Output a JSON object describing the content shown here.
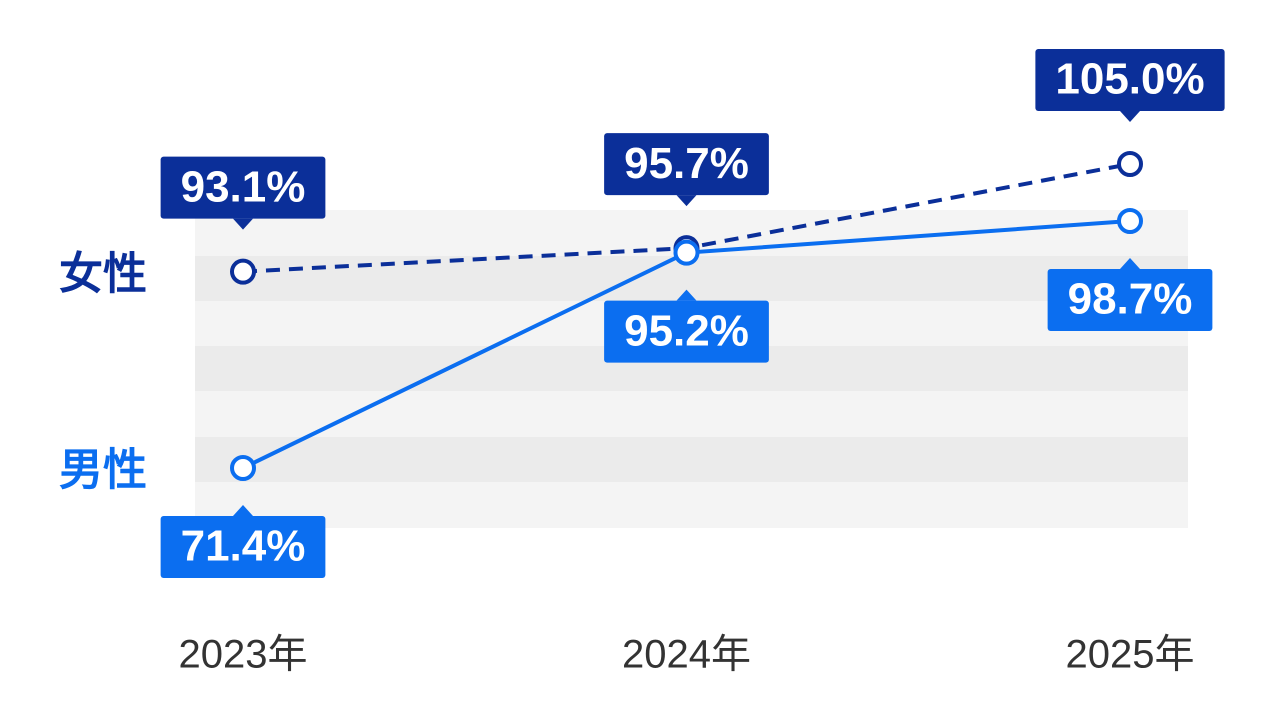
{
  "chart_data": {
    "type": "line",
    "categories": [
      "2023年",
      "2024年",
      "2025年"
    ],
    "series": [
      {
        "name": "女性",
        "color": "#0b2f99",
        "dashed": true,
        "values": [
          93.1,
          95.7,
          105.0
        ],
        "value_labels": [
          "93.1%",
          "95.7%",
          "105.0%"
        ]
      },
      {
        "name": "男性",
        "color": "#0b6ef0",
        "dashed": false,
        "values": [
          71.4,
          95.2,
          98.7
        ],
        "value_labels": [
          "71.4%",
          "95.2%",
          "98.7%"
        ]
      }
    ]
  }
}
